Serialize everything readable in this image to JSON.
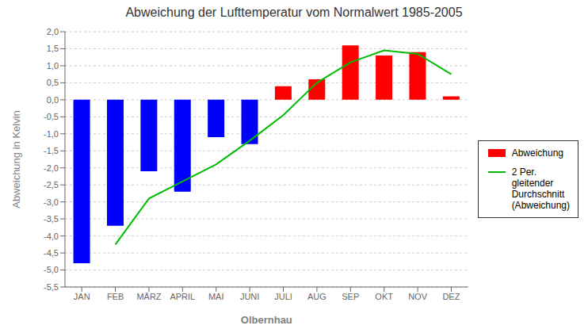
{
  "chart_data": {
    "type": "bar",
    "title": "Abweichung der Lufttemperatur vom Normalwert 1985-2005",
    "xlabel": "Olbernhau",
    "ylabel": "Abweichung in Kelvin",
    "categories": [
      "JAN",
      "FEB",
      "MÄRZ",
      "APRIL",
      "MAI",
      "JUNI",
      "JULI",
      "AUG",
      "SEP",
      "OKT",
      "NOV",
      "DEZ"
    ],
    "series": [
      {
        "name": "Abweichung",
        "type": "bar",
        "color": "#ff0000",
        "colors": [
          "#0000ff",
          "#0000ff",
          "#0000ff",
          "#0000ff",
          "#0000ff",
          "#0000ff",
          "#ff0000",
          "#ff0000",
          "#ff0000",
          "#ff0000",
          "#ff0000",
          "#ff0000"
        ],
        "values": [
          -4.8,
          -3.7,
          -2.1,
          -2.7,
          -1.1,
          -1.3,
          0.4,
          0.6,
          1.6,
          1.3,
          1.4,
          0.1
        ]
      },
      {
        "name": "2 Per.\ngleitender\nDurchschnitt\n(Abweichung)",
        "type": "line",
        "color": "#00bb00",
        "values": [
          null,
          -4.25,
          -2.9,
          -2.4,
          -1.9,
          -1.2,
          -0.45,
          0.5,
          1.1,
          1.45,
          1.35,
          0.75
        ]
      }
    ],
    "ylim": [
      -5.5,
      2.0
    ],
    "yticks": [
      {
        "value": -5.5,
        "label": "-5,5"
      },
      {
        "value": -5.0,
        "label": "-5,0"
      },
      {
        "value": -4.5,
        "label": "-4,5"
      },
      {
        "value": -4.0,
        "label": "-4,0"
      },
      {
        "value": -3.5,
        "label": "-3,5"
      },
      {
        "value": -3.0,
        "label": "-3,0"
      },
      {
        "value": -2.5,
        "label": "-2,5"
      },
      {
        "value": -2.0,
        "label": "-2,0"
      },
      {
        "value": -1.5,
        "label": "-1,5"
      },
      {
        "value": -1.0,
        "label": "-1,0"
      },
      {
        "value": -0.5,
        "label": "-0,5"
      },
      {
        "value": 0.0,
        "label": "0,0"
      },
      {
        "value": 0.5,
        "label": "0,5"
      },
      {
        "value": 1.0,
        "label": "1,0"
      },
      {
        "value": 1.5,
        "label": "1,5"
      },
      {
        "value": 2.0,
        "label": "2,0"
      }
    ],
    "grid": true,
    "legend": "right"
  }
}
